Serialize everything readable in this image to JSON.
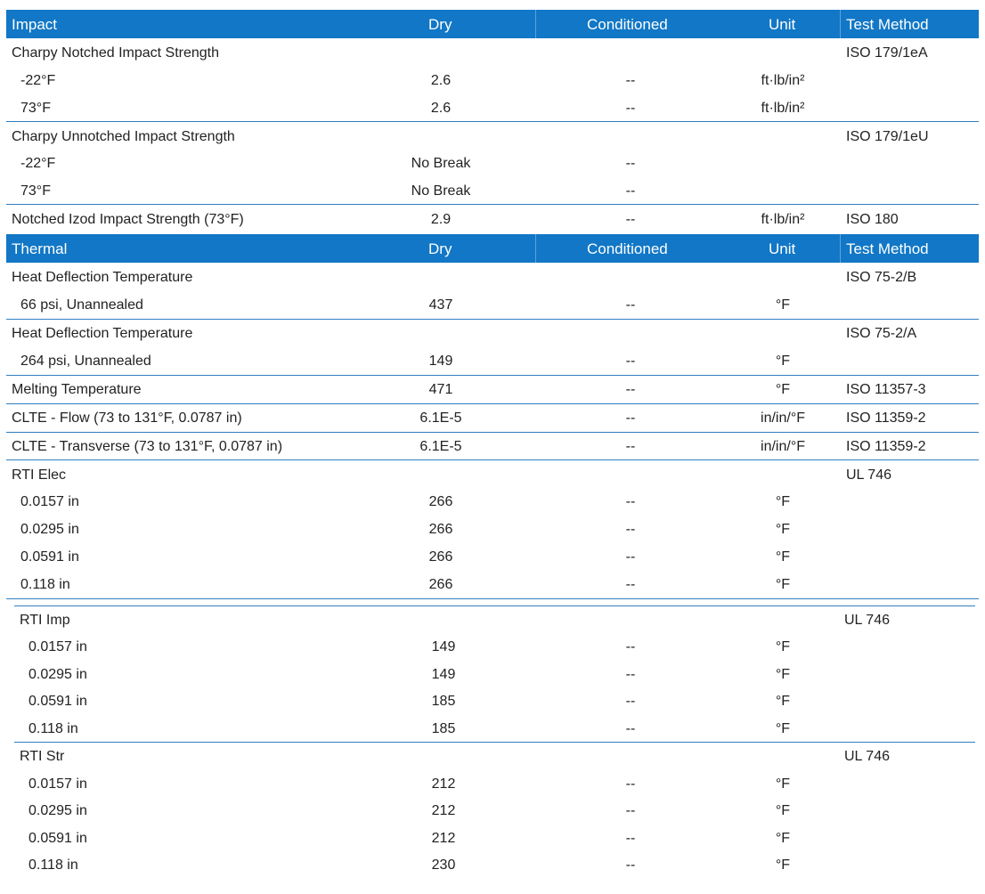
{
  "impact": {
    "header": {
      "name": "Impact",
      "dry": "Dry",
      "conditioned": "Conditioned",
      "unit": "Unit",
      "method": "Test Method"
    },
    "rows": [
      {
        "label": "Charpy Notched Impact Strength",
        "dry": "",
        "cond": "",
        "unit": "",
        "method": "ISO 179/1eA"
      },
      {
        "label": "-22°F",
        "dry": "2.6",
        "cond": "--",
        "unit": "ft·lb/in²",
        "method": ""
      },
      {
        "label": "73°F",
        "dry": "2.6",
        "cond": "--",
        "unit": "ft·lb/in²",
        "method": ""
      },
      {
        "label": "Charpy Unnotched Impact Strength",
        "dry": "",
        "cond": "",
        "unit": "",
        "method": "ISO 179/1eU"
      },
      {
        "label": "-22°F",
        "dry": "No Break",
        "cond": "--",
        "unit": "",
        "method": ""
      },
      {
        "label": "73°F",
        "dry": "No Break",
        "cond": "--",
        "unit": "",
        "method": ""
      },
      {
        "label": "Notched Izod Impact Strength (73°F)",
        "dry": "2.9",
        "cond": "--",
        "unit": "ft·lb/in²",
        "method": "ISO 180"
      }
    ]
  },
  "thermal": {
    "header": {
      "name": "Thermal",
      "dry": "Dry",
      "conditioned": "Conditioned",
      "unit": "Unit",
      "method": "Test Method"
    },
    "rows": [
      {
        "label": "Heat Deflection Temperature",
        "dry": "",
        "cond": "",
        "unit": "",
        "method": "ISO 75-2/B"
      },
      {
        "label": "66 psi, Unannealed",
        "dry": "437",
        "cond": "--",
        "unit": "°F",
        "method": ""
      },
      {
        "label": "Heat Deflection Temperature",
        "dry": "",
        "cond": "",
        "unit": "",
        "method": "ISO 75-2/A"
      },
      {
        "label": "264 psi, Unannealed",
        "dry": "149",
        "cond": "--",
        "unit": "°F",
        "method": ""
      },
      {
        "label": "Melting Temperature",
        "dry": "471",
        "cond": "--",
        "unit": "°F",
        "method": "ISO 11357-3"
      },
      {
        "label": "CLTE - Flow (73 to 131°F, 0.0787 in)",
        "dry": "6.1E-5",
        "cond": "--",
        "unit": "in/in/°F",
        "method": "ISO 11359-2"
      },
      {
        "label": "CLTE - Transverse (73 to 131°F, 0.0787 in)",
        "dry": "6.1E-5",
        "cond": "--",
        "unit": "in/in/°F",
        "method": "ISO 11359-2"
      },
      {
        "label": "RTI Elec",
        "dry": "",
        "cond": "",
        "unit": "",
        "method": "UL 746"
      },
      {
        "label": "0.0157 in",
        "dry": "266",
        "cond": "--",
        "unit": "°F",
        "method": ""
      },
      {
        "label": "0.0295 in",
        "dry": "266",
        "cond": "--",
        "unit": "°F",
        "method": ""
      },
      {
        "label": "0.0591 in",
        "dry": "266",
        "cond": "--",
        "unit": "°F",
        "method": ""
      },
      {
        "label": "0.118 in",
        "dry": "266",
        "cond": "--",
        "unit": "°F",
        "method": ""
      }
    ]
  },
  "rti_imp": {
    "rows": [
      {
        "label": "RTI Imp",
        "dry": "",
        "cond": "",
        "unit": "",
        "method": "UL 746"
      },
      {
        "label": "0.0157 in",
        "dry": "149",
        "cond": "--",
        "unit": "°F",
        "method": ""
      },
      {
        "label": "0.0295 in",
        "dry": "149",
        "cond": "--",
        "unit": "°F",
        "method": ""
      },
      {
        "label": "0.0591 in",
        "dry": "185",
        "cond": "--",
        "unit": "°F",
        "method": ""
      },
      {
        "label": "0.118 in",
        "dry": "185",
        "cond": "--",
        "unit": "°F",
        "method": ""
      }
    ]
  },
  "rti_str": {
    "rows": [
      {
        "label": "RTI Str",
        "dry": "",
        "cond": "",
        "unit": "",
        "method": "UL 746"
      },
      {
        "label": "0.0157 in",
        "dry": "212",
        "cond": "--",
        "unit": "°F",
        "method": ""
      },
      {
        "label": "0.0295 in",
        "dry": "212",
        "cond": "--",
        "unit": "°F",
        "method": ""
      },
      {
        "label": "0.0591 in",
        "dry": "212",
        "cond": "--",
        "unit": "°F",
        "method": ""
      },
      {
        "label": "0.118 in",
        "dry": "230",
        "cond": "--",
        "unit": "°F",
        "method": ""
      }
    ]
  },
  "colors": {
    "header_bg": "#1177c6",
    "rule": "#2f7fc1"
  }
}
